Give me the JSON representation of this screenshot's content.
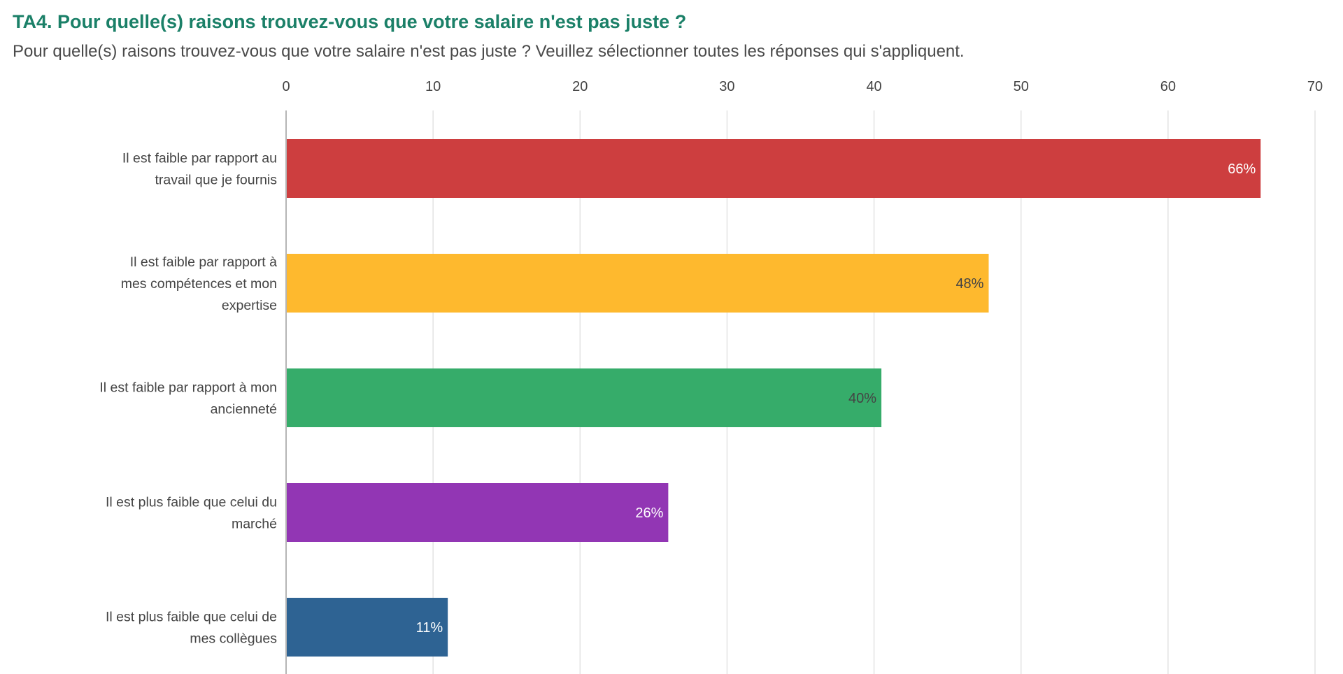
{
  "title": "TA4. Pour quelle(s) raisons trouvez-vous que votre salaire n'est pas juste ?",
  "subtitle": "Pour quelle(s) raisons trouvez-vous que votre salaire n'est pas juste ? Veuillez sélectionner toutes les réponses qui s'appliquent.",
  "chart_data": {
    "type": "bar",
    "orientation": "horizontal",
    "xlim": [
      0,
      70
    ],
    "ticks": [
      0,
      10,
      20,
      30,
      40,
      50,
      60,
      70
    ],
    "tick_position": "top",
    "grid": true,
    "legend": "none",
    "categories": [
      [
        "Il est faible par rapport au",
        "travail que je fournis"
      ],
      [
        "Il est faible par rapport à",
        "mes compétences et mon",
        "expertise"
      ],
      [
        "Il est faible par rapport à mon",
        "ancienneté"
      ],
      [
        "Il est plus faible que celui du",
        "marché"
      ],
      [
        "Il est plus faible que celui de",
        "mes collègues"
      ]
    ],
    "values": [
      66.3,
      47.8,
      40.5,
      26.0,
      11.0
    ],
    "data_labels": [
      "66%",
      "48%",
      "40%",
      "26%",
      "11%"
    ],
    "colors": [
      "#cd3e3f",
      "#feb92e",
      "#36ac6a",
      "#9236b4",
      "#2e6393"
    ],
    "label_colors": [
      "#ffffff",
      "#444444",
      "#444444",
      "#ffffff",
      "#ffffff"
    ]
  }
}
